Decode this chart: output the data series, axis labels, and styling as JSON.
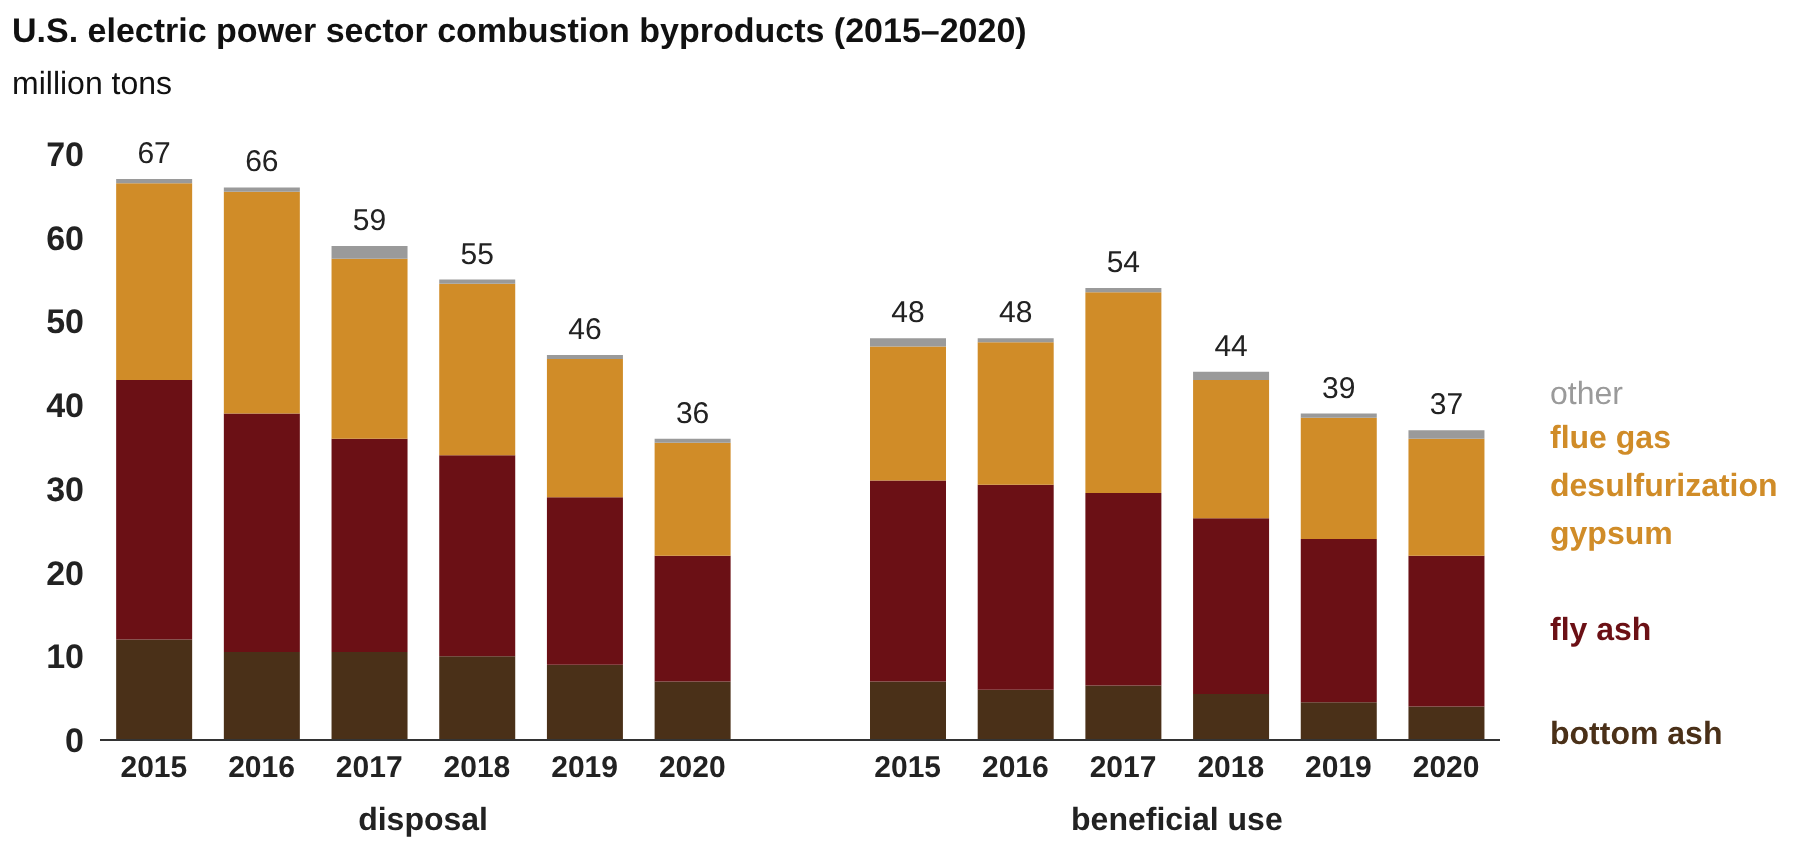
{
  "chart_data": {
    "type": "bar",
    "stacked": true,
    "title": "U.S. electric power sector combustion byproducts (2015–2020)",
    "ylabel": "million tons",
    "categories": [
      "2015",
      "2016",
      "2017",
      "2018",
      "2019",
      "2020",
      null,
      "2015",
      "2016",
      "2017",
      "2018",
      "2019",
      "2020"
    ],
    "series": [
      {
        "name": "bottom ash",
        "color": "#4a3018",
        "values": [
          12,
          10.5,
          10.5,
          10,
          9,
          7,
          null,
          7,
          6,
          6.5,
          5.5,
          4.5,
          4
        ]
      },
      {
        "name": "fly ash",
        "color": "#6b1015",
        "values": [
          31,
          28.5,
          25.5,
          24,
          20,
          15,
          null,
          24,
          24.5,
          23,
          21,
          19.5,
          18
        ]
      },
      {
        "name": "flue gas desulfurization gypsum",
        "color": "#d08c28",
        "values": [
          23.5,
          26.5,
          21.5,
          20.5,
          16.5,
          13.5,
          null,
          16,
          17,
          24,
          16.5,
          14.5,
          14
        ]
      },
      {
        "name": "other",
        "color": "#9a9a9a",
        "values": [
          0.5,
          0.5,
          1.5,
          0.5,
          0.5,
          0.5,
          null,
          1,
          0.5,
          0.5,
          1,
          0.5,
          1
        ]
      }
    ],
    "totals": [
      "67",
      "66",
      "59",
      "55",
      "46",
      "36",
      null,
      "48",
      "48",
      "54",
      "44",
      "39",
      "37"
    ],
    "ylim": [
      0,
      70
    ],
    "yticks": [
      0,
      10,
      20,
      30,
      40,
      50,
      60,
      70
    ],
    "grid": false,
    "legend": "right",
    "annotations": [
      "disposal",
      "beneficial use"
    ]
  }
}
